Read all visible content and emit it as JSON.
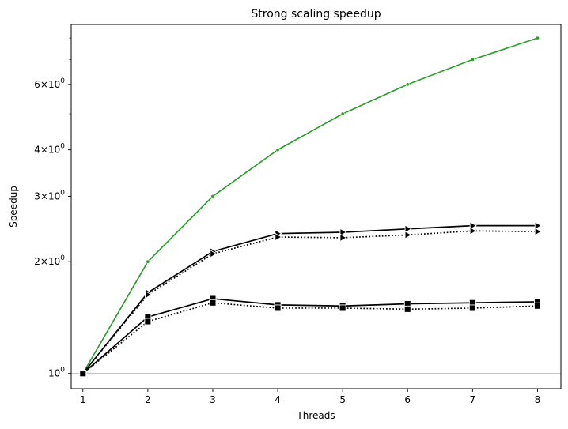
{
  "chart_data": {
    "type": "line",
    "title": "Strong scaling speedup",
    "xlabel": "Threads",
    "ylabel": "Speedup",
    "x": [
      1,
      2,
      3,
      4,
      5,
      6,
      7,
      8
    ],
    "xlim": [
      0.82,
      8.36
    ],
    "ylim": [
      0.91,
      8.7
    ],
    "yscale": "log",
    "xticks": [
      "1",
      "2",
      "3",
      "4",
      "5",
      "6",
      "7",
      "8"
    ],
    "yticks": [
      {
        "value": 1,
        "base": "10",
        "exp": "0",
        "mult": ""
      },
      {
        "value": 2,
        "base": "10",
        "exp": "0",
        "mult": "2"
      },
      {
        "value": 3,
        "base": "10",
        "exp": "0",
        "mult": "3"
      },
      {
        "value": 4,
        "base": "10",
        "exp": "0",
        "mult": "4"
      },
      {
        "value": 6,
        "base": "10",
        "exp": "0",
        "mult": "6"
      }
    ],
    "minor_yticks": [
      5,
      7,
      8
    ],
    "reference_line": 1,
    "series": [
      {
        "color": "#2ca02c",
        "style": "solid",
        "marker": "point",
        "values": [
          1,
          2,
          3,
          4,
          5,
          6,
          7,
          8
        ]
      },
      {
        "color": "#000000",
        "style": "solid",
        "marker": "triangle-right",
        "values": [
          1,
          1.65,
          2.13,
          2.38,
          2.4,
          2.45,
          2.5,
          2.5
        ]
      },
      {
        "color": "#000000",
        "style": "dotted",
        "marker": "triangle-right",
        "values": [
          1,
          1.63,
          2.1,
          2.33,
          2.32,
          2.36,
          2.42,
          2.41
        ]
      },
      {
        "color": "#000000",
        "style": "solid",
        "marker": "square",
        "values": [
          1,
          1.42,
          1.59,
          1.53,
          1.52,
          1.54,
          1.55,
          1.56
        ]
      },
      {
        "color": "#000000",
        "style": "dotted",
        "marker": "square",
        "values": [
          1,
          1.38,
          1.55,
          1.5,
          1.5,
          1.49,
          1.5,
          1.52
        ]
      }
    ]
  }
}
